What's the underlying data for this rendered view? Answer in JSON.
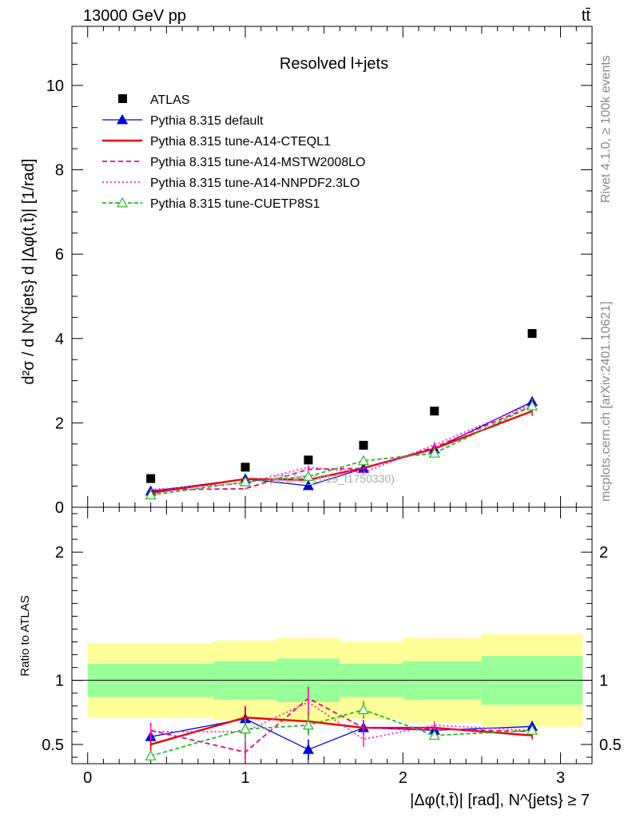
{
  "header": {
    "left": "13000 GeV pp",
    "right": "tt̄"
  },
  "side_labels": {
    "rivet": "Rivet 4.1.0, ≥ 100k events",
    "mcplots": "mcplots.cern.ch [arXiv:2401.10621]"
  },
  "watermark": "(ATLAS_2019_I1750330)",
  "chart_data": {
    "type": "scatter",
    "title": "Resolved l+jets",
    "xlabel": "|Δφ(t,t̄)| [rad], N^{jets} ≥ 7",
    "ylabel": "d²σ / d N^{jets} d |Δφ(t,t̄)| [1/rad]",
    "ratio_ylabel": "Ratio to ATLAS",
    "xlim": [
      -0.1,
      3.2
    ],
    "ylim": [
      0,
      11.4
    ],
    "ratio_ylim": [
      0.35,
      2.35
    ],
    "main_yticks": [
      0,
      2,
      4,
      6,
      8,
      10
    ],
    "ratio_yticks": [
      0.5,
      1,
      2
    ],
    "xticks": [
      0,
      1,
      2,
      3
    ],
    "x": [
      0.4,
      1.0,
      1.4,
      1.75,
      2.2,
      2.82
    ],
    "bin_edges": [
      0.0,
      0.8,
      1.2,
      1.6,
      2.0,
      2.5,
      3.14
    ],
    "data": {
      "name": "ATLAS",
      "values": [
        0.68,
        0.95,
        1.12,
        1.47,
        2.28,
        4.12
      ]
    },
    "band_inner": [
      [
        0.87,
        1.13
      ],
      [
        0.85,
        1.15
      ],
      [
        0.83,
        1.17
      ],
      [
        0.87,
        1.13
      ],
      [
        0.85,
        1.15
      ],
      [
        0.81,
        1.19
      ]
    ],
    "band_outer": [
      [
        0.71,
        1.29
      ],
      [
        0.69,
        1.31
      ],
      [
        0.67,
        1.33
      ],
      [
        0.7,
        1.3
      ],
      [
        0.67,
        1.33
      ],
      [
        0.64,
        1.36
      ]
    ],
    "series": [
      {
        "name": "Pythia 8.315 default",
        "color": "#0000dd",
        "dash": "",
        "marker": "triangle-filled",
        "values": [
          0.38,
          0.67,
          0.51,
          0.92,
          1.38,
          2.5
        ],
        "ratio": [
          0.56,
          0.7,
          0.46,
          0.63,
          0.61,
          0.64
        ],
        "ratio_err": [
          0.05,
          0.09,
          0.08,
          0.06,
          0.03,
          0.04
        ]
      },
      {
        "name": "Pythia 8.315 tune-A14-CTEQL1",
        "color": "#ee0000",
        "dash": "",
        "marker": "none",
        "values": [
          0.34,
          0.67,
          0.65,
          0.93,
          1.39,
          2.28
        ],
        "ratio": [
          0.5,
          0.71,
          0.68,
          0.63,
          0.63,
          0.57
        ],
        "ratio_err": [
          0.05,
          0.09,
          0.09,
          0.06,
          0.03,
          0.03
        ]
      },
      {
        "name": "Pythia 8.315 tune-A14-MSTW2008LO",
        "color": "#ee0088",
        "dash": "6,4",
        "marker": "none",
        "values": [
          0.41,
          0.44,
          0.9,
          0.92,
          1.42,
          2.4
        ],
        "ratio": [
          0.61,
          0.44,
          0.86,
          0.63,
          0.62,
          0.6
        ],
        "ratio_err": [
          0.06,
          0.08,
          0.09,
          0.06,
          0.03,
          0.03
        ]
      },
      {
        "name": "Pythia 8.315 tune-A14-NNPDF2.3LO",
        "color": "#ff22cc",
        "dash": "2,3",
        "marker": "none",
        "values": [
          0.42,
          0.57,
          0.95,
          0.82,
          1.48,
          2.45
        ],
        "ratio": [
          0.6,
          0.6,
          0.83,
          0.54,
          0.65,
          0.61
        ],
        "ratio_err": [
          0.06,
          0.08,
          0.09,
          0.06,
          0.03,
          0.03
        ]
      },
      {
        "name": "Pythia 8.315 tune-CUETP8S1",
        "color": "#22bb22",
        "dash": "5,3",
        "marker": "triangle-open",
        "values": [
          0.29,
          0.6,
          0.73,
          1.1,
          1.28,
          2.4
        ],
        "ratio": [
          0.41,
          0.62,
          0.65,
          0.77,
          0.57,
          0.61
        ],
        "ratio_err": [
          0.04,
          0.08,
          0.08,
          0.07,
          0.03,
          0.03
        ]
      }
    ]
  }
}
